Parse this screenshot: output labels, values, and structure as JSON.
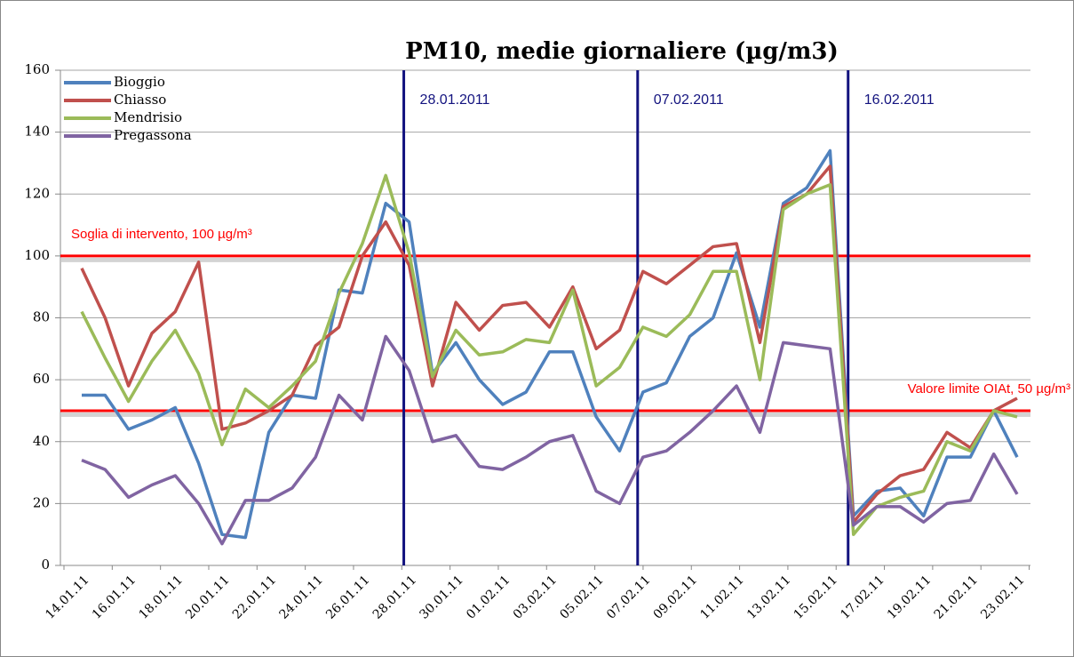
{
  "chart_data": {
    "type": "line",
    "title": "PM10, medie giornaliere (µg/m3)",
    "categories": [
      "14.01.11",
      null,
      "16.01.11",
      null,
      "18.01.11",
      null,
      "20.01.11",
      null,
      "22.01.11",
      null,
      "24.01.11",
      null,
      "26.01.11",
      null,
      "28.01.11",
      null,
      "30.01.11",
      null,
      "01.02.11",
      null,
      "03.02.11",
      null,
      "05.02.11",
      null,
      "07.02.11",
      null,
      "09.02.11",
      null,
      "11.02.11",
      null,
      "13.02.11",
      null,
      "15.02.11",
      null,
      "17.02.11",
      null,
      "19.02.11",
      null,
      "21.02.11",
      null,
      "23.02.11"
    ],
    "series": [
      {
        "name": "Bioggio",
        "color": "#4f81bd",
        "values": [
          55,
          55,
          44,
          47,
          51,
          33,
          10,
          9,
          43,
          55,
          54,
          89,
          88,
          117,
          111,
          62,
          72,
          60,
          52,
          56,
          69,
          69,
          48,
          37,
          56,
          59,
          74,
          80,
          101,
          77,
          117,
          122,
          134,
          16,
          24,
          25,
          16,
          35,
          35,
          50,
          35
        ]
      },
      {
        "name": "Chiasso",
        "color": "#c0504d",
        "values": [
          96,
          80,
          58,
          75,
          82,
          98,
          44,
          46,
          50,
          55,
          71,
          77,
          100,
          111,
          97,
          58,
          85,
          76,
          84,
          85,
          77,
          90,
          70,
          76,
          95,
          91,
          97,
          103,
          104,
          72,
          116,
          120,
          129,
          14,
          23,
          29,
          31,
          43,
          38,
          50,
          54
        ]
      },
      {
        "name": "Mendrisio",
        "color": "#9bbb59",
        "values": [
          82,
          67,
          53,
          66,
          76,
          62,
          39,
          57,
          51,
          58,
          66,
          88,
          104,
          126,
          101,
          61,
          76,
          68,
          69,
          73,
          72,
          89,
          58,
          64,
          77,
          74,
          81,
          95,
          95,
          60,
          115,
          120,
          123,
          10,
          19,
          22,
          24,
          40,
          37,
          50,
          48
        ]
      },
      {
        "name": "Pregassona",
        "color": "#8064a2",
        "values": [
          34,
          31,
          22,
          26,
          29,
          20,
          7,
          21,
          21,
          25,
          35,
          55,
          47,
          74,
          63,
          40,
          42,
          32,
          31,
          35,
          40,
          42,
          24,
          20,
          35,
          37,
          43,
          50,
          58,
          43,
          72,
          71,
          70,
          13,
          19,
          19,
          14,
          20,
          21,
          36,
          23
        ]
      }
    ],
    "ylim": [
      0,
      160
    ],
    "yticks": [
      0,
      20,
      40,
      60,
      80,
      100,
      120,
      140,
      160
    ],
    "grid": true,
    "hlines": [
      {
        "value": 100,
        "label": "Soglia di intervento, 100 µg/m³",
        "color": "#ff0000"
      },
      {
        "value": 50,
        "label": "Valore limite OIAt, 50 µg/m³",
        "color": "#ff0000"
      }
    ],
    "vlines": [
      {
        "label": "28.01.2011",
        "color": "#13137f"
      },
      {
        "label": "07.02.2011",
        "color": "#13137f"
      },
      {
        "label": "16.02.2011",
        "color": "#13137f"
      }
    ]
  }
}
